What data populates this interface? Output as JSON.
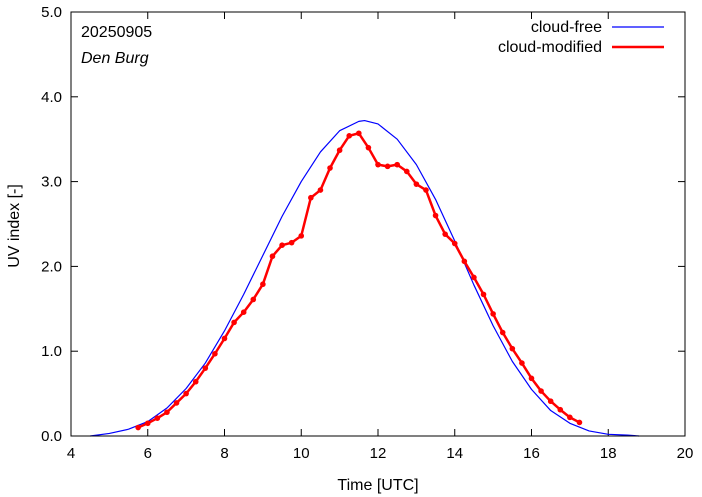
{
  "chart_data": {
    "type": "line",
    "xlabel": "Time  [UTC]",
    "ylabel": "UV index  [-]",
    "xlim": [
      4,
      20
    ],
    "ylim": [
      0,
      5
    ],
    "xticks": [
      4,
      6,
      8,
      10,
      12,
      14,
      16,
      18,
      20
    ],
    "yticks": [
      0,
      1,
      2,
      3,
      4,
      5
    ],
    "ytick_labels": [
      "0.0",
      "1.0",
      "2.0",
      "3.0",
      "4.0",
      "5.0"
    ],
    "grid": false,
    "legend_position": "top-right",
    "annotations": [
      "20250905",
      "Den Burg"
    ],
    "series": [
      {
        "name": "cloud-free",
        "color": "#0000ff",
        "marker": "none",
        "x": [
          4.5,
          5.0,
          5.5,
          6.0,
          6.5,
          7.0,
          7.5,
          8.0,
          8.5,
          9.0,
          9.5,
          10.0,
          10.5,
          11.0,
          11.5,
          11.65,
          12.0,
          12.5,
          13.0,
          13.5,
          14.0,
          14.5,
          15.0,
          15.5,
          16.0,
          16.5,
          17.0,
          17.5,
          18.0,
          18.5,
          18.8
        ],
        "y": [
          0.0,
          0.03,
          0.08,
          0.17,
          0.33,
          0.56,
          0.86,
          1.24,
          1.67,
          2.13,
          2.59,
          3.0,
          3.35,
          3.6,
          3.71,
          3.72,
          3.68,
          3.5,
          3.2,
          2.79,
          2.3,
          1.78,
          1.3,
          0.88,
          0.55,
          0.3,
          0.15,
          0.06,
          0.02,
          0.01,
          0.0
        ]
      },
      {
        "name": "cloud-modified",
        "color": "#ff0000",
        "marker": "circle",
        "x": [
          5.75,
          6.0,
          6.25,
          6.5,
          6.75,
          7.0,
          7.25,
          7.5,
          7.75,
          8.0,
          8.25,
          8.5,
          8.75,
          9.0,
          9.25,
          9.5,
          9.75,
          10.0,
          10.25,
          10.5,
          10.75,
          11.0,
          11.25,
          11.5,
          11.75,
          12.0,
          12.25,
          12.5,
          12.75,
          13.0,
          13.25,
          13.5,
          13.75,
          14.0,
          14.25,
          14.5,
          14.75,
          15.0,
          15.25,
          15.5,
          15.75,
          16.0,
          16.25,
          16.5,
          16.75,
          17.0,
          17.25
        ],
        "y": [
          0.1,
          0.15,
          0.21,
          0.28,
          0.39,
          0.5,
          0.64,
          0.8,
          0.97,
          1.15,
          1.34,
          1.46,
          1.61,
          1.79,
          2.12,
          2.25,
          2.28,
          2.36,
          2.81,
          2.9,
          3.16,
          3.37,
          3.54,
          3.57,
          3.4,
          3.2,
          3.18,
          3.2,
          3.12,
          2.97,
          2.9,
          2.6,
          2.38,
          2.27,
          2.06,
          1.87,
          1.67,
          1.44,
          1.22,
          1.03,
          0.86,
          0.68,
          0.53,
          0.41,
          0.31,
          0.22,
          0.16
        ]
      }
    ]
  }
}
